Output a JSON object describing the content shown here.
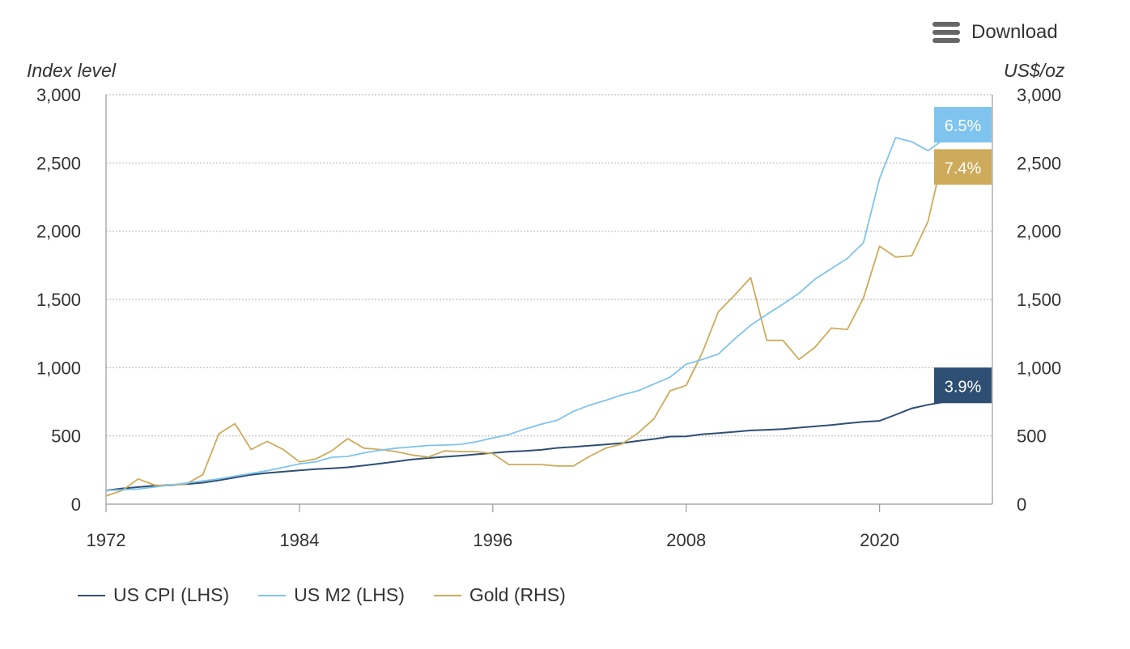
{
  "download": {
    "label": "Download",
    "icon": "hamburger-menu-icon"
  },
  "colors": {
    "cpi": "#2e4f74",
    "m2": "#7ec4ee",
    "gold": "#cdab5a",
    "grid": "#bdbdbd",
    "axis": "#999999"
  },
  "chart_data": {
    "type": "line",
    "left_axis_title": "Index level",
    "right_axis_title": "US$/oz",
    "y_ticks": [
      "0",
      "500",
      "1,000",
      "1,500",
      "2,000",
      "2,500",
      "3,000"
    ],
    "y_tick_values": [
      0,
      500,
      1000,
      1500,
      2000,
      2500,
      3000
    ],
    "ylim": [
      0,
      3000
    ],
    "x_ticks": [
      "1972",
      "1984",
      "1996",
      "2008",
      "2020"
    ],
    "x_tick_values": [
      1972,
      1984,
      1996,
      2008,
      2020
    ],
    "xlim": [
      1972,
      2027
    ],
    "grid": true,
    "legend_position": "bottom-left",
    "series": [
      {
        "name": "US CPI (LHS)",
        "key": "cpi",
        "axis": "left",
        "end_label": "3.9%",
        "x": [
          1972,
          1973,
          1974,
          1975,
          1976,
          1977,
          1978,
          1979,
          1980,
          1981,
          1982,
          1983,
          1984,
          1985,
          1986,
          1987,
          1988,
          1989,
          1990,
          1991,
          1992,
          1993,
          1994,
          1995,
          1996,
          1997,
          1998,
          1999,
          2000,
          2001,
          2002,
          2003,
          2004,
          2005,
          2006,
          2007,
          2008,
          2009,
          2010,
          2011,
          2012,
          2013,
          2014,
          2015,
          2016,
          2017,
          2018,
          2019,
          2020,
          2021,
          2022,
          2023,
          2024
        ],
        "values": [
          100,
          115,
          125,
          135,
          140,
          147,
          157,
          175,
          195,
          215,
          228,
          238,
          247,
          257,
          262,
          270,
          283,
          297,
          312,
          328,
          338,
          347,
          355,
          365,
          375,
          385,
          390,
          398,
          412,
          420,
          428,
          437,
          447,
          463,
          477,
          495,
          497,
          512,
          520,
          530,
          540,
          545,
          550,
          560,
          570,
          580,
          592,
          603,
          610,
          655,
          702,
          728,
          748
        ]
      },
      {
        "name": "US M2 (LHS)",
        "key": "m2",
        "axis": "left",
        "end_label": "6.5%",
        "x": [
          1972,
          1973,
          1974,
          1975,
          1976,
          1977,
          1978,
          1979,
          1980,
          1981,
          1982,
          1983,
          1984,
          1985,
          1986,
          1987,
          1988,
          1989,
          1990,
          1991,
          1992,
          1993,
          1994,
          1995,
          1996,
          1997,
          1998,
          1999,
          2000,
          2001,
          2002,
          2003,
          2004,
          2005,
          2006,
          2007,
          2008,
          2009,
          2010,
          2011,
          2012,
          2013,
          2014,
          2015,
          2016,
          2017,
          2018,
          2019,
          2020,
          2021,
          2022,
          2023,
          2024
        ],
        "values": [
          100,
          105,
          110,
          125,
          140,
          155,
          170,
          185,
          205,
          225,
          245,
          270,
          295,
          310,
          343,
          350,
          375,
          395,
          410,
          420,
          430,
          433,
          438,
          458,
          485,
          510,
          550,
          585,
          615,
          680,
          725,
          760,
          800,
          830,
          880,
          930,
          1025,
          1060,
          1100,
          1210,
          1310,
          1390,
          1465,
          1545,
          1650,
          1725,
          1800,
          1915,
          2385,
          2685,
          2655,
          2590,
          2675
        ]
      },
      {
        "name": "Gold (RHS)",
        "key": "gold",
        "axis": "right",
        "end_label": "7.4%",
        "x": [
          1972,
          1973,
          1974,
          1975,
          1976,
          1977,
          1978,
          1979,
          1980,
          1981,
          1982,
          1983,
          1984,
          1985,
          1986,
          1987,
          1988,
          1989,
          1990,
          1991,
          1992,
          1993,
          1994,
          1995,
          1996,
          1997,
          1998,
          1999,
          2000,
          2001,
          2002,
          2003,
          2004,
          2005,
          2006,
          2007,
          2008,
          2009,
          2010,
          2011,
          2012,
          2013,
          2014,
          2015,
          2016,
          2017,
          2018,
          2019,
          2020,
          2021,
          2022,
          2023,
          2024
        ],
        "values": [
          60,
          100,
          185,
          140,
          135,
          150,
          215,
          515,
          590,
          400,
          460,
          400,
          310,
          330,
          390,
          480,
          410,
          400,
          385,
          360,
          345,
          390,
          385,
          385,
          370,
          290,
          290,
          290,
          280,
          280,
          350,
          410,
          440,
          520,
          625,
          830,
          870,
          1110,
          1410,
          1530,
          1660,
          1200,
          1200,
          1060,
          1150,
          1290,
          1280,
          1510,
          1890,
          1810,
          1820,
          2070,
          2580
        ]
      }
    ]
  }
}
